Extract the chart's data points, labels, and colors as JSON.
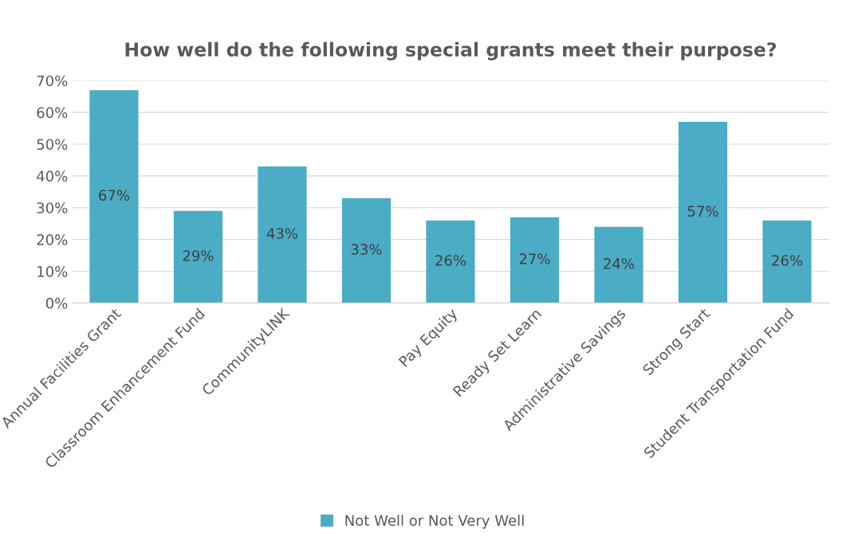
{
  "chart_data": {
    "type": "bar",
    "title": "How well do the following special grants meet their purpose?",
    "categories": [
      "Annual Facilities Grant",
      "Classroom Enhancement Fund",
      "CommunityLINK",
      null,
      "Pay Equity",
      "Ready Set Learn",
      "Administrative Savings",
      "Strong Start",
      "Student Transportation Fund"
    ],
    "series": [
      {
        "name": "Not Well or Not Very Well",
        "color": "#4bacc6",
        "values": [
          67,
          29,
          43,
          33,
          26,
          27,
          24,
          57,
          26
        ]
      }
    ],
    "value_labels": [
      "67%",
      "29%",
      "43%",
      "33%",
      "26%",
      "27%",
      "24%",
      "57%",
      "26%"
    ],
    "ylim": [
      0,
      70
    ],
    "yticks": [
      {
        "value": 0,
        "label": "0%"
      },
      {
        "value": 10,
        "label": "10%"
      },
      {
        "value": 20,
        "label": "20%"
      },
      {
        "value": 30,
        "label": "30%"
      },
      {
        "value": 40,
        "label": "40%"
      },
      {
        "value": 50,
        "label": "50%"
      },
      {
        "value": 60,
        "label": "60%"
      },
      {
        "value": 70,
        "label": "70%"
      }
    ],
    "grid": "y",
    "legend": "bottom"
  }
}
